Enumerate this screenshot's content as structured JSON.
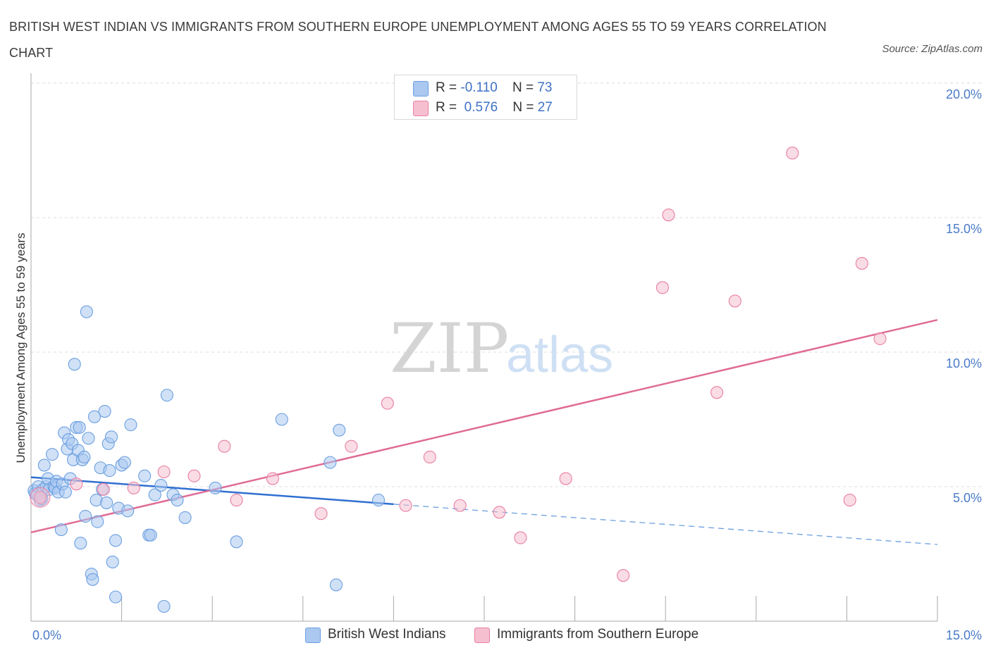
{
  "header": {
    "title": "BRITISH WEST INDIAN VS IMMIGRANTS FROM SOUTHERN EUROPE UNEMPLOYMENT AMONG AGES 55 TO 59 YEARS CORRELATION CHART",
    "source": "Source: ZipAtlas.com"
  },
  "watermark": {
    "zip": "ZIP",
    "atlas": "atlas"
  },
  "legend_top": {
    "rows": [
      {
        "r_label": "R = ",
        "r_value": "-0.110",
        "n_label": "N = ",
        "n_value": "73",
        "color": "#aac8f0"
      },
      {
        "r_label": "R = ",
        "r_value": "0.576",
        "n_label": "N = ",
        "n_value": "27",
        "color": "#f6bfd0"
      }
    ]
  },
  "legend_bottom": {
    "items": [
      {
        "label": "British West Indians",
        "color": "#aac8f0"
      },
      {
        "label": "Immigrants from Southern Europe",
        "color": "#f6bfd0"
      }
    ]
  },
  "chart_data": {
    "type": "scatter",
    "title": "BRITISH WEST INDIAN VS IMMIGRANTS FROM SOUTHERN EUROPE UNEMPLOYMENT AMONG AGES 55 TO 59 YEARS CORRELATION CHART",
    "xlabel": "",
    "ylabel": "Unemployment Among Ages 55 to 59 years",
    "xlim": [
      0,
      15
    ],
    "ylim": [
      0,
      20
    ],
    "x_tick_labels": [
      "0.0%",
      "15.0%"
    ],
    "y_tick_labels": [
      {
        "value": 5,
        "label": "5.0%"
      },
      {
        "value": 10,
        "label": "10.0%"
      },
      {
        "value": 15,
        "label": "15.0%"
      },
      {
        "value": 20,
        "label": "20.0%"
      }
    ],
    "grid": "horizontal dashed",
    "legend_position": "bottom",
    "series": [
      {
        "name": "British West Indians",
        "color": "#6b9fe0",
        "fill": "#aac8f0",
        "r": -0.11,
        "n": 73,
        "trend": {
          "x0": 0.0,
          "y0": 5.35,
          "x1": 6.0,
          "y1": 4.35,
          "dash_to_x": 15.0,
          "dash_to_y": 2.85
        },
        "points": [
          [
            0.05,
            4.85
          ],
          [
            0.07,
            4.75
          ],
          [
            0.1,
            4.7
          ],
          [
            0.12,
            5.0
          ],
          [
            0.15,
            4.5
          ],
          [
            0.18,
            4.55
          ],
          [
            0.2,
            4.9
          ],
          [
            0.22,
            5.8
          ],
          [
            0.25,
            5.0
          ],
          [
            0.28,
            5.3
          ],
          [
            0.3,
            4.9
          ],
          [
            0.35,
            6.2
          ],
          [
            0.38,
            5.0
          ],
          [
            0.4,
            4.95
          ],
          [
            0.42,
            5.2
          ],
          [
            0.45,
            4.8
          ],
          [
            0.5,
            3.4
          ],
          [
            0.52,
            5.1
          ],
          [
            0.55,
            7.0
          ],
          [
            0.57,
            4.8
          ],
          [
            0.6,
            6.4
          ],
          [
            0.62,
            6.75
          ],
          [
            0.65,
            5.3
          ],
          [
            0.68,
            6.6
          ],
          [
            0.7,
            6.0
          ],
          [
            0.72,
            9.55
          ],
          [
            0.75,
            7.2
          ],
          [
            0.78,
            6.35
          ],
          [
            0.8,
            7.2
          ],
          [
            0.82,
            2.9
          ],
          [
            0.85,
            6.0
          ],
          [
            0.88,
            6.1
          ],
          [
            0.9,
            3.9
          ],
          [
            0.92,
            11.5
          ],
          [
            0.95,
            6.8
          ],
          [
            1.0,
            1.75
          ],
          [
            1.02,
            1.55
          ],
          [
            1.05,
            7.6
          ],
          [
            1.08,
            4.5
          ],
          [
            1.1,
            3.7
          ],
          [
            1.15,
            5.7
          ],
          [
            1.18,
            4.9
          ],
          [
            1.22,
            7.8
          ],
          [
            1.25,
            4.4
          ],
          [
            1.28,
            6.6
          ],
          [
            1.3,
            5.6
          ],
          [
            1.33,
            6.85
          ],
          [
            1.35,
            2.2
          ],
          [
            1.4,
            3.0
          ],
          [
            1.4,
            0.9
          ],
          [
            1.45,
            4.2
          ],
          [
            1.5,
            5.8
          ],
          [
            1.55,
            5.9
          ],
          [
            1.6,
            4.1
          ],
          [
            1.65,
            7.3
          ],
          [
            1.88,
            5.4
          ],
          [
            1.95,
            3.2
          ],
          [
            1.98,
            3.2
          ],
          [
            2.05,
            4.7
          ],
          [
            2.15,
            5.05
          ],
          [
            2.2,
            0.55
          ],
          [
            2.25,
            8.4
          ],
          [
            2.35,
            4.7
          ],
          [
            2.42,
            4.5
          ],
          [
            2.55,
            3.85
          ],
          [
            3.05,
            4.95
          ],
          [
            3.4,
            2.95
          ],
          [
            4.15,
            7.5
          ],
          [
            4.95,
            5.9
          ],
          [
            5.05,
            1.35
          ],
          [
            5.1,
            7.1
          ],
          [
            5.75,
            4.5
          ],
          [
            0.16,
            4.6
          ]
        ]
      },
      {
        "name": "Immigrants from Southern Europe",
        "color": "#e87fa3",
        "fill": "#f6bfd0",
        "r": 0.576,
        "n": 27,
        "trend": {
          "x0": 0.0,
          "y0": 3.3,
          "x1": 15.0,
          "y1": 11.2
        },
        "points": [
          [
            0.15,
            4.6
          ],
          [
            0.75,
            5.1
          ],
          [
            1.2,
            4.9
          ],
          [
            1.7,
            4.95
          ],
          [
            2.2,
            5.55
          ],
          [
            2.7,
            5.4
          ],
          [
            3.2,
            6.5
          ],
          [
            3.4,
            4.5
          ],
          [
            4.0,
            5.3
          ],
          [
            4.8,
            4.0
          ],
          [
            5.3,
            6.5
          ],
          [
            5.9,
            8.1
          ],
          [
            6.2,
            4.3
          ],
          [
            6.6,
            6.1
          ],
          [
            7.1,
            4.3
          ],
          [
            7.75,
            4.05
          ],
          [
            8.1,
            3.1
          ],
          [
            8.85,
            5.3
          ],
          [
            9.8,
            1.7
          ],
          [
            10.45,
            12.4
          ],
          [
            10.55,
            15.1
          ],
          [
            11.35,
            8.5
          ],
          [
            11.65,
            11.9
          ],
          [
            12.6,
            17.4
          ],
          [
            13.55,
            4.5
          ],
          [
            13.75,
            13.3
          ],
          [
            14.05,
            10.5
          ]
        ]
      }
    ]
  }
}
